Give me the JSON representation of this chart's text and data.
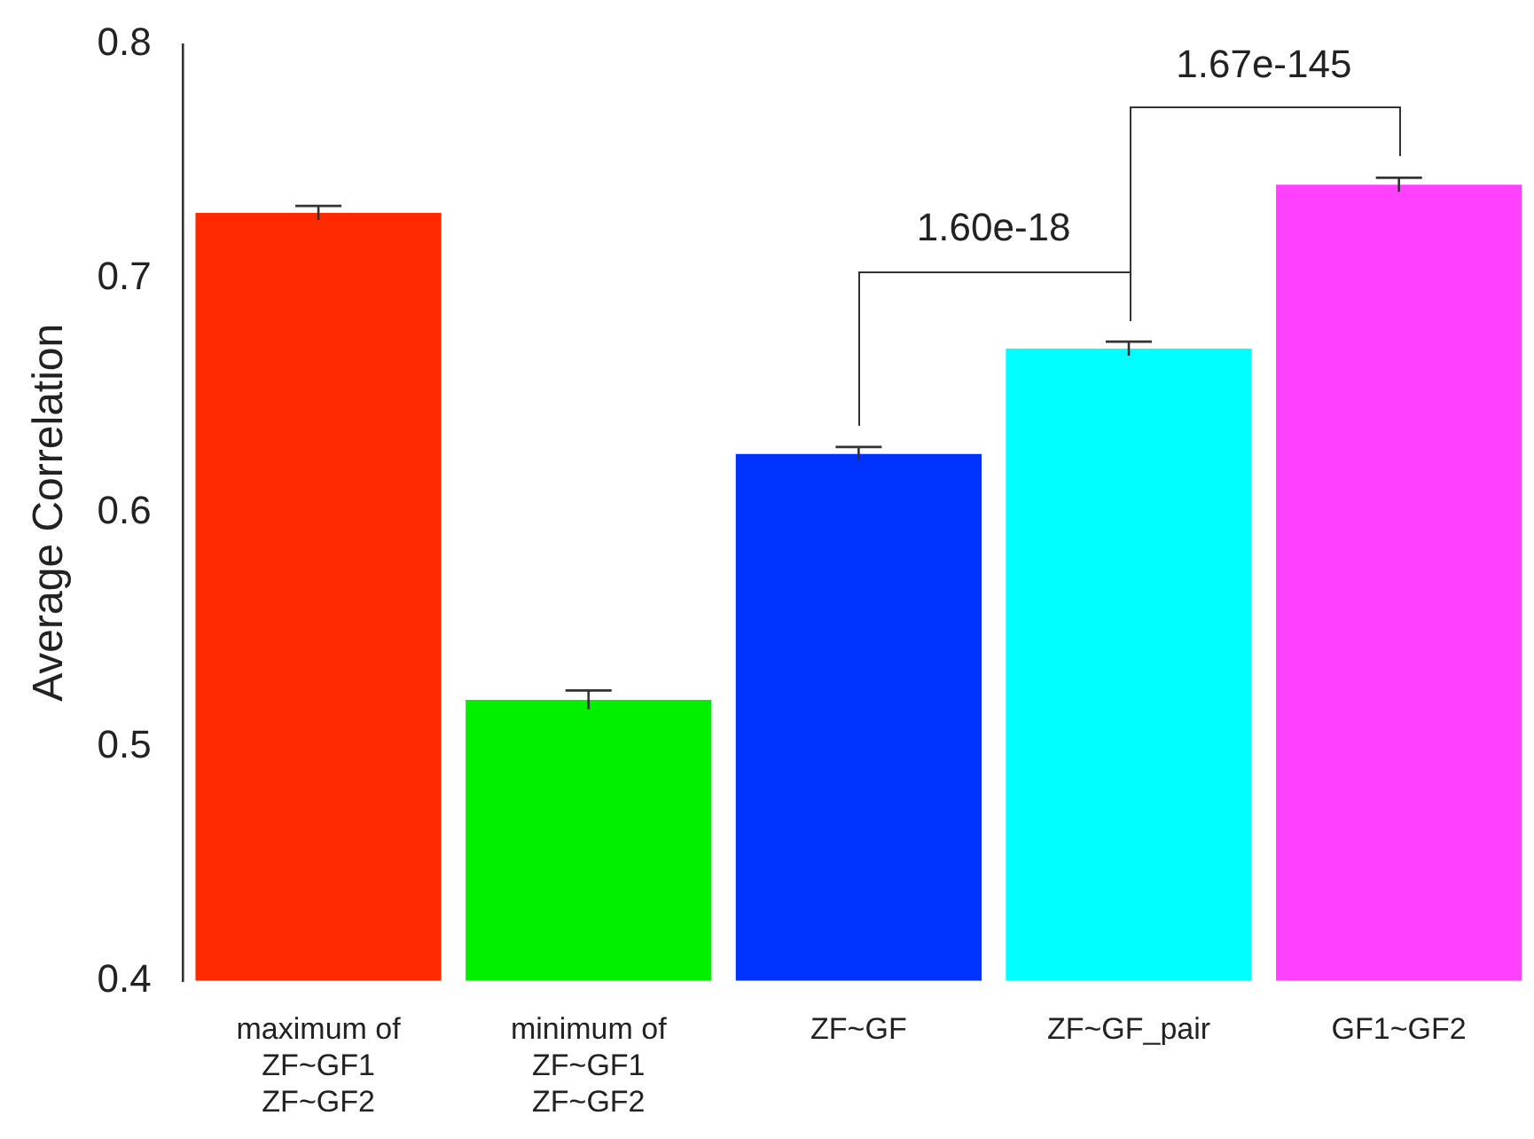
{
  "chart_data": {
    "type": "bar",
    "ylabel": "Average Correlation",
    "categories": [
      "maximum of\nZF~GF1\nZF~GF2",
      "minimum of\nZF~GF1\nZF~GF2",
      "ZF~GF",
      "ZF~GF_pair",
      "GF1~GF2"
    ],
    "values": [
      0.728,
      0.52,
      0.625,
      0.67,
      0.74
    ],
    "errors": [
      0.003,
      0.004,
      0.003,
      0.003,
      0.003
    ],
    "colors": [
      "#ff2a00",
      "#00f000",
      "#0033ff",
      "#00ffff",
      "#ff40ff"
    ],
    "ylim": [
      0.4,
      0.8
    ],
    "yticks": [
      0.4,
      0.5,
      0.6,
      0.7,
      0.8
    ],
    "grid": false,
    "legend": false,
    "annotations": [
      "1.60e-18",
      "1.67e-145"
    ]
  }
}
